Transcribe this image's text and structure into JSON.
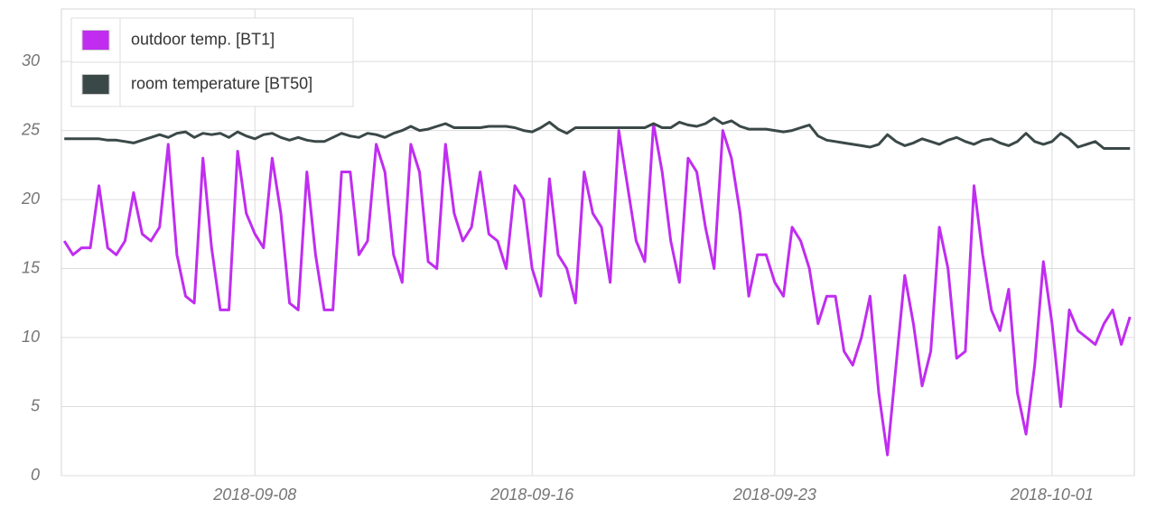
{
  "chart_data": {
    "type": "line",
    "x": [
      "2018-09-02T12:00",
      "2018-09-02T18:00",
      "2018-09-03T00:00",
      "2018-09-03T06:00",
      "2018-09-03T12:00",
      "2018-09-03T18:00",
      "2018-09-04T00:00",
      "2018-09-04T06:00",
      "2018-09-04T12:00",
      "2018-09-04T18:00",
      "2018-09-05T00:00",
      "2018-09-05T06:00",
      "2018-09-05T12:00",
      "2018-09-05T18:00",
      "2018-09-06T00:00",
      "2018-09-06T06:00",
      "2018-09-06T12:00",
      "2018-09-06T18:00",
      "2018-09-07T00:00",
      "2018-09-07T06:00",
      "2018-09-07T12:00",
      "2018-09-07T18:00",
      "2018-09-08T00:00",
      "2018-09-08T06:00",
      "2018-09-08T12:00",
      "2018-09-08T18:00",
      "2018-09-09T00:00",
      "2018-09-09T06:00",
      "2018-09-09T12:00",
      "2018-09-09T18:00",
      "2018-09-10T00:00",
      "2018-09-10T06:00",
      "2018-09-10T12:00",
      "2018-09-10T18:00",
      "2018-09-11T00:00",
      "2018-09-11T06:00",
      "2018-09-11T12:00",
      "2018-09-11T18:00",
      "2018-09-12T00:00",
      "2018-09-12T06:00",
      "2018-09-12T12:00",
      "2018-09-12T18:00",
      "2018-09-13T00:00",
      "2018-09-13T06:00",
      "2018-09-13T12:00",
      "2018-09-13T18:00",
      "2018-09-14T00:00",
      "2018-09-14T06:00",
      "2018-09-14T12:00",
      "2018-09-14T18:00",
      "2018-09-15T00:00",
      "2018-09-15T06:00",
      "2018-09-15T12:00",
      "2018-09-15T18:00",
      "2018-09-16T00:00",
      "2018-09-16T06:00",
      "2018-09-16T12:00",
      "2018-09-16T18:00",
      "2018-09-17T00:00",
      "2018-09-17T06:00",
      "2018-09-17T12:00",
      "2018-09-17T18:00",
      "2018-09-18T00:00",
      "2018-09-18T06:00",
      "2018-09-18T12:00",
      "2018-09-18T18:00",
      "2018-09-19T00:00",
      "2018-09-19T06:00",
      "2018-09-19T12:00",
      "2018-09-19T18:00",
      "2018-09-20T00:00",
      "2018-09-20T06:00",
      "2018-09-20T12:00",
      "2018-09-20T18:00",
      "2018-09-21T00:00",
      "2018-09-21T06:00",
      "2018-09-21T12:00",
      "2018-09-21T18:00",
      "2018-09-22T00:00",
      "2018-09-22T06:00",
      "2018-09-22T12:00",
      "2018-09-22T18:00",
      "2018-09-23T00:00",
      "2018-09-23T06:00",
      "2018-09-23T12:00",
      "2018-09-23T18:00",
      "2018-09-24T00:00",
      "2018-09-24T06:00",
      "2018-09-24T12:00",
      "2018-09-24T18:00",
      "2018-09-25T00:00",
      "2018-09-25T06:00",
      "2018-09-25T12:00",
      "2018-09-25T18:00",
      "2018-09-26T00:00",
      "2018-09-26T06:00",
      "2018-09-26T12:00",
      "2018-09-26T18:00",
      "2018-09-27T00:00",
      "2018-09-27T06:00",
      "2018-09-27T12:00",
      "2018-09-27T18:00",
      "2018-09-28T00:00",
      "2018-09-28T06:00",
      "2018-09-28T12:00",
      "2018-09-28T18:00",
      "2018-09-29T00:00",
      "2018-09-29T06:00",
      "2018-09-29T12:00",
      "2018-09-29T18:00",
      "2018-09-30T00:00",
      "2018-09-30T06:00",
      "2018-09-30T12:00",
      "2018-09-30T18:00",
      "2018-10-01T00:00",
      "2018-10-01T06:00",
      "2018-10-01T12:00",
      "2018-10-01T18:00",
      "2018-10-02T00:00",
      "2018-10-02T06:00",
      "2018-10-02T12:00",
      "2018-10-02T18:00",
      "2018-10-03T00:00",
      "2018-10-03T06:00"
    ],
    "series": [
      {
        "name": "outdoor temp. [BT1]",
        "color": "#c02df0",
        "values": [
          17,
          16,
          16.5,
          16.5,
          21,
          16.5,
          16,
          17,
          20.5,
          17.5,
          17,
          18,
          24,
          16,
          13,
          12.5,
          23,
          16.5,
          12,
          12,
          23.5,
          19,
          17.5,
          16.5,
          23,
          19,
          12.5,
          12,
          22,
          16,
          12,
          12,
          22,
          22,
          16,
          17,
          24,
          22,
          16,
          14,
          24,
          22,
          15.5,
          15,
          24,
          19,
          17,
          18,
          22,
          17.5,
          17,
          15,
          21,
          20,
          15,
          13,
          21.5,
          16,
          15,
          12.5,
          22,
          19,
          18,
          14,
          25,
          21,
          17,
          15.5,
          25.5,
          22,
          17,
          14,
          23,
          22,
          18,
          15,
          25,
          23,
          19,
          13,
          16,
          16,
          14,
          13,
          18,
          17,
          15,
          11,
          13,
          13,
          9,
          8,
          10,
          13,
          6,
          1.5,
          8,
          14.5,
          11,
          6.5,
          9,
          18,
          15,
          8.5,
          9,
          21,
          16,
          12,
          10.5,
          13.5,
          6,
          3,
          8,
          15.5,
          11,
          5,
          12,
          10.5,
          10,
          9.5,
          11,
          12,
          9.5,
          11.5
        ]
      },
      {
        "name": "room temperature [BT50]",
        "color": "#3b4848",
        "values": [
          24.4,
          24.4,
          24.4,
          24.4,
          24.4,
          24.3,
          24.3,
          24.2,
          24.1,
          24.3,
          24.5,
          24.7,
          24.5,
          24.8,
          24.9,
          24.5,
          24.8,
          24.7,
          24.8,
          24.5,
          24.9,
          24.6,
          24.4,
          24.7,
          24.8,
          24.5,
          24.3,
          24.5,
          24.3,
          24.2,
          24.2,
          24.5,
          24.8,
          24.6,
          24.5,
          24.8,
          24.7,
          24.5,
          24.8,
          25.0,
          25.3,
          25.0,
          25.1,
          25.3,
          25.5,
          25.2,
          25.2,
          25.2,
          25.2,
          25.3,
          25.3,
          25.3,
          25.2,
          25.0,
          24.9,
          25.2,
          25.6,
          25.1,
          24.8,
          25.2,
          25.2,
          25.2,
          25.2,
          25.2,
          25.2,
          25.2,
          25.2,
          25.2,
          25.5,
          25.2,
          25.2,
          25.6,
          25.4,
          25.3,
          25.5,
          25.9,
          25.5,
          25.7,
          25.3,
          25.1,
          25.1,
          25.1,
          25.0,
          24.9,
          25.0,
          25.2,
          25.4,
          24.6,
          24.3,
          24.2,
          24.1,
          24.0,
          23.9,
          23.8,
          24.0,
          24.7,
          24.2,
          23.9,
          24.1,
          24.4,
          24.2,
          24.0,
          24.3,
          24.5,
          24.2,
          24.0,
          24.3,
          24.4,
          24.1,
          23.9,
          24.2,
          24.8,
          24.2,
          24.0,
          24.2,
          24.8,
          24.4,
          23.8,
          24.0,
          24.2,
          23.7,
          23.7,
          23.7,
          23.7
        ]
      }
    ],
    "xlim": [
      "2018-09-02T10:00",
      "2018-10-03T09:00"
    ],
    "xticks": [
      "2018-09-08",
      "2018-09-16",
      "2018-09-23",
      "2018-10-01"
    ],
    "ylim": [
      0,
      33.8
    ],
    "yticks": [
      0,
      5,
      10,
      15,
      20,
      25,
      30
    ],
    "grid": true,
    "legend": "top-left"
  }
}
